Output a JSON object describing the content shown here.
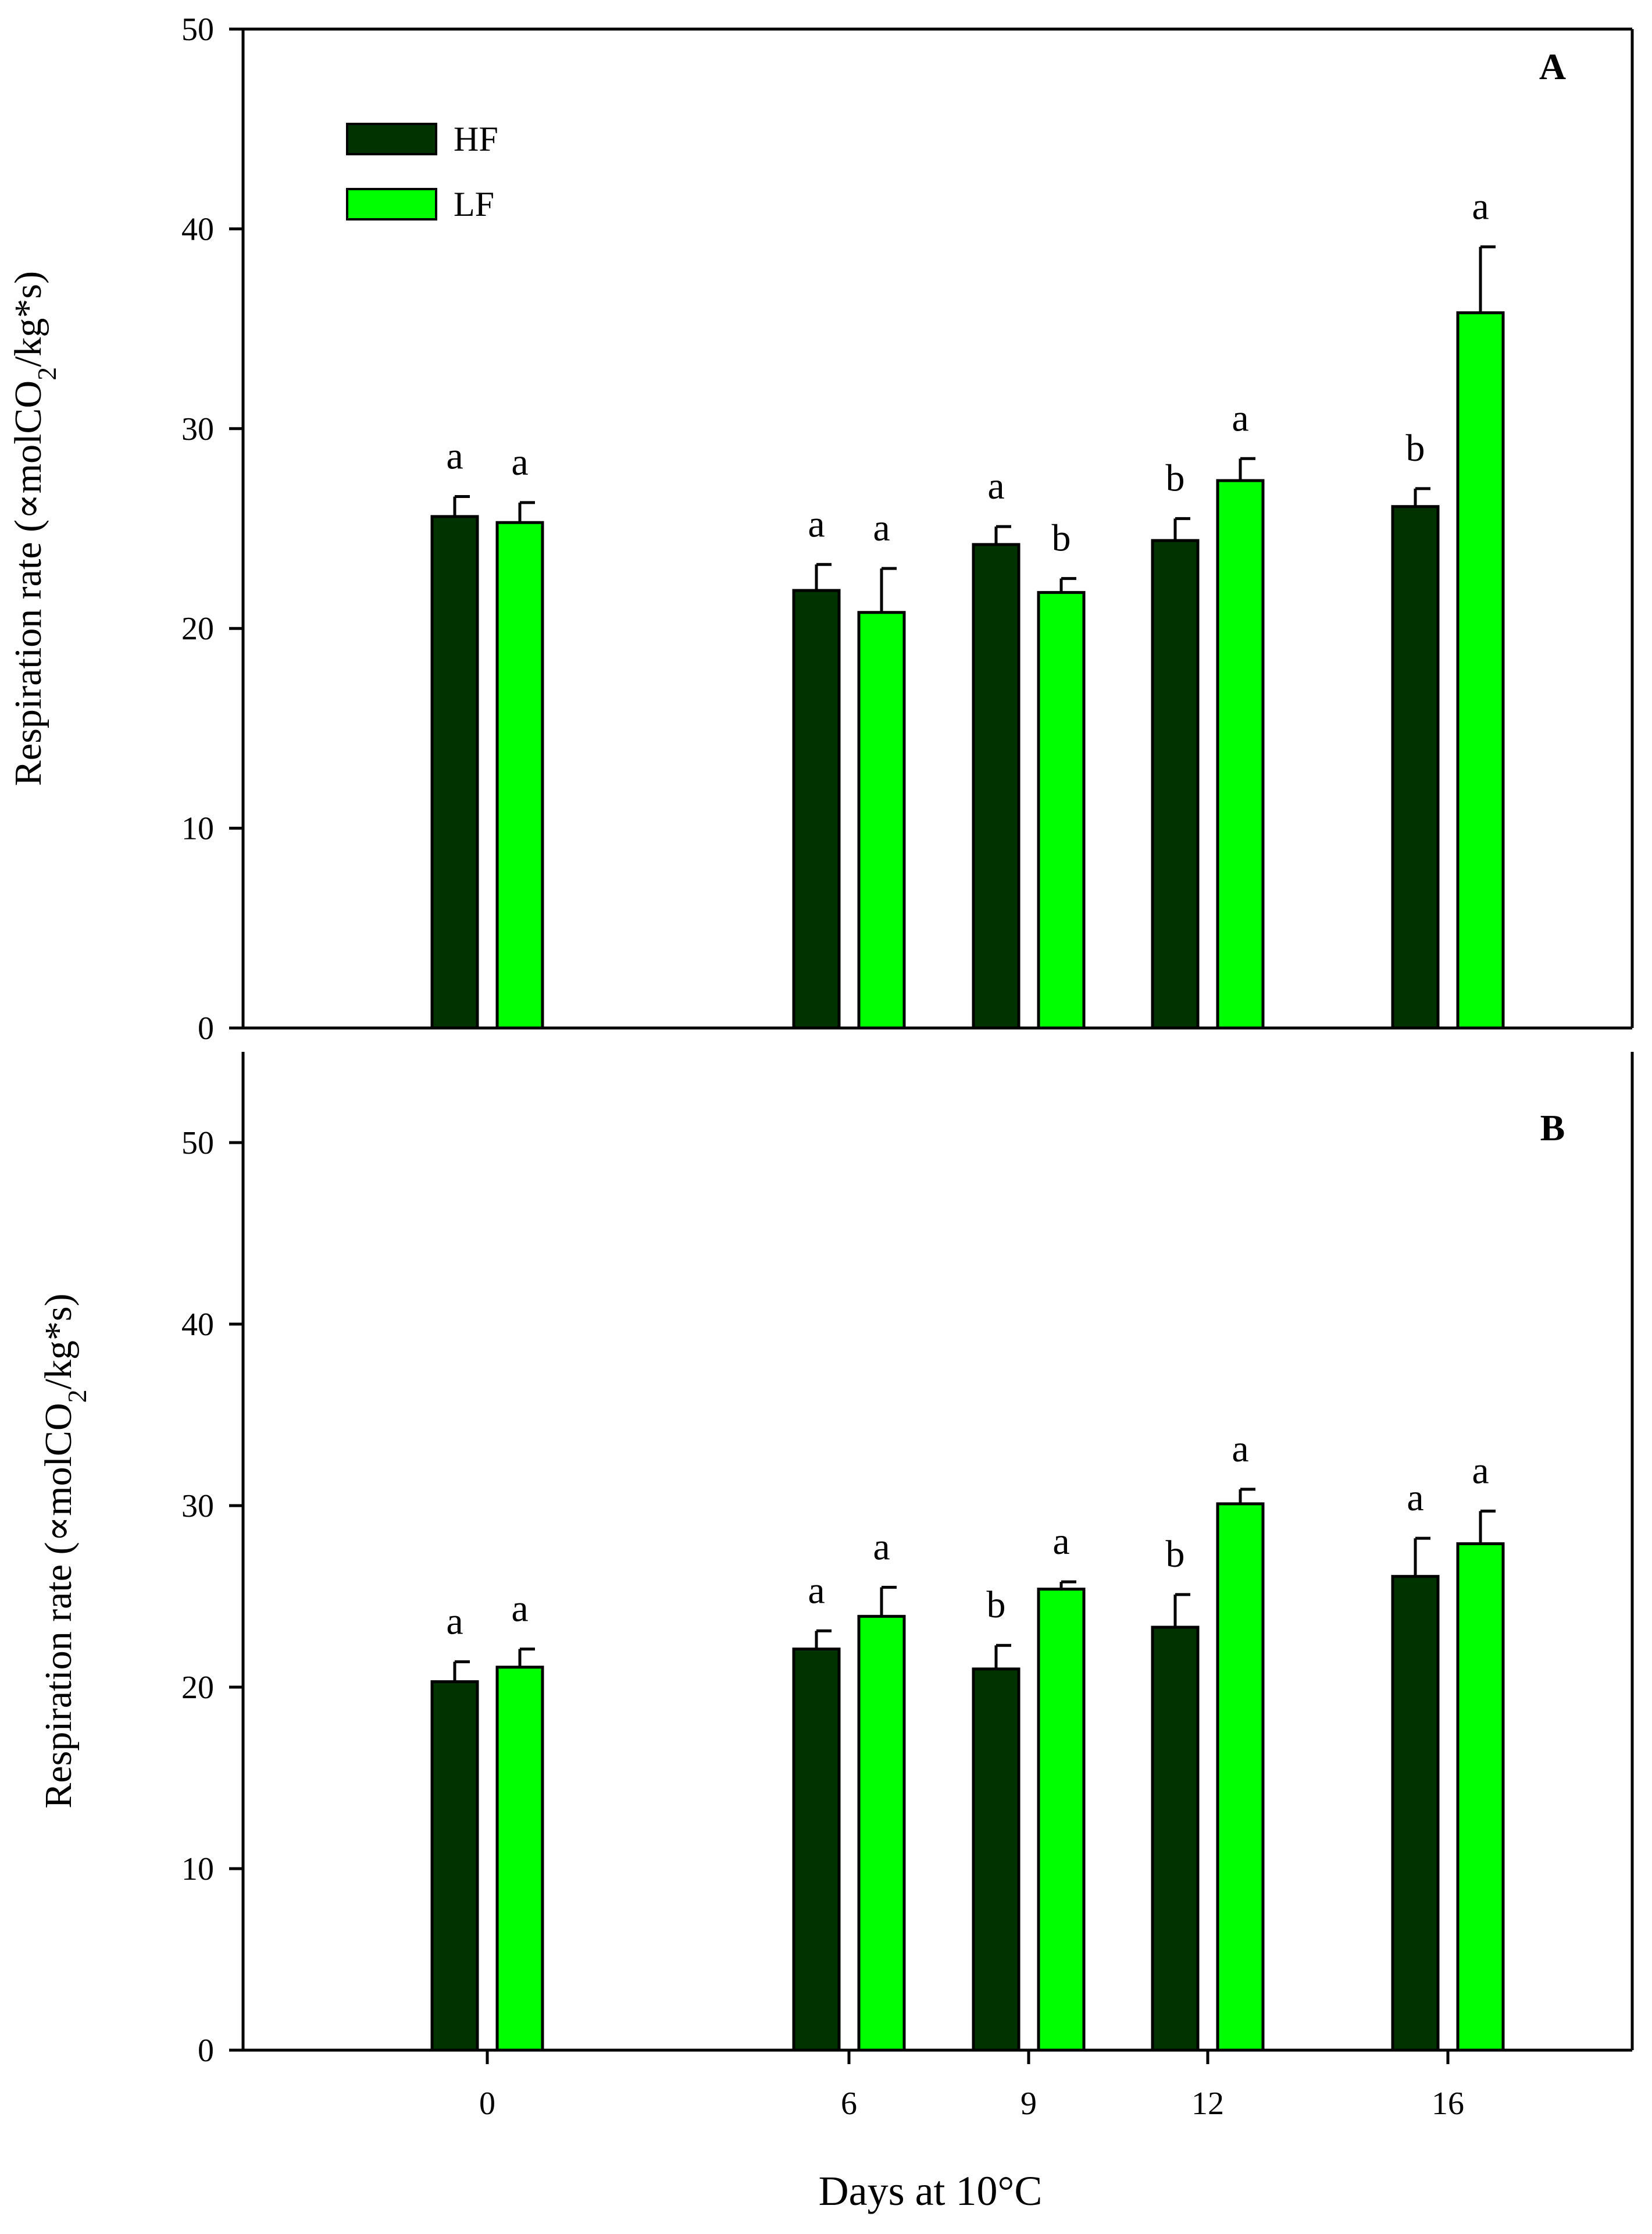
{
  "colors": {
    "hf": "#003300",
    "lf": "#00ff00",
    "axis": "#000000",
    "background": "#ffffff"
  },
  "xlabel": "Days at 10°C",
  "chart_data": [
    {
      "type": "bar",
      "panel_label": "A",
      "ylabel_main": "Respiration rate (∝molCO",
      "ylabel_sub": "2",
      "ylabel_end": "/kg*s)",
      "ylim": [
        0,
        50
      ],
      "yticks": [
        0,
        10,
        20,
        30,
        40,
        50
      ],
      "categories": [
        0,
        6,
        9,
        12,
        16
      ],
      "legend": {
        "position": "top-left",
        "entries": [
          "HF",
          "LF"
        ]
      },
      "series": [
        {
          "name": "HF",
          "values": [
            25.6,
            21.9,
            24.2,
            24.4,
            26.1
          ],
          "errors": [
            1.0,
            1.3,
            0.9,
            1.1,
            0.9
          ],
          "letters": [
            "a",
            "a",
            "a",
            "b",
            "b"
          ]
        },
        {
          "name": "LF",
          "values": [
            25.3,
            20.8,
            21.8,
            27.4,
            35.8
          ],
          "errors": [
            1.0,
            2.2,
            0.7,
            1.1,
            3.3
          ],
          "letters": [
            "a",
            "a",
            "b",
            "a",
            "a"
          ]
        }
      ]
    },
    {
      "type": "bar",
      "panel_label": "B",
      "ylabel_main": "Respiration rate (∝molCO",
      "ylabel_sub": "2",
      "ylabel_end": "/kg*s)",
      "ylim": [
        0,
        55
      ],
      "yticks": [
        0,
        10,
        20,
        30,
        40,
        50
      ],
      "categories": [
        0,
        6,
        9,
        12,
        16
      ],
      "xticklabels": [
        "0",
        "6",
        "9",
        "12",
        "16"
      ],
      "series": [
        {
          "name": "HF",
          "values": [
            20.3,
            22.1,
            21.0,
            23.3,
            26.1
          ],
          "errors": [
            1.1,
            1.0,
            1.3,
            1.8,
            2.1
          ],
          "letters": [
            "a",
            "a",
            "b",
            "b",
            "a"
          ]
        },
        {
          "name": "LF",
          "values": [
            21.1,
            23.9,
            25.4,
            30.1,
            27.9
          ],
          "errors": [
            1.0,
            1.6,
            0.4,
            0.8,
            1.8
          ],
          "letters": [
            "a",
            "a",
            "a",
            "a",
            "a"
          ]
        }
      ]
    }
  ]
}
